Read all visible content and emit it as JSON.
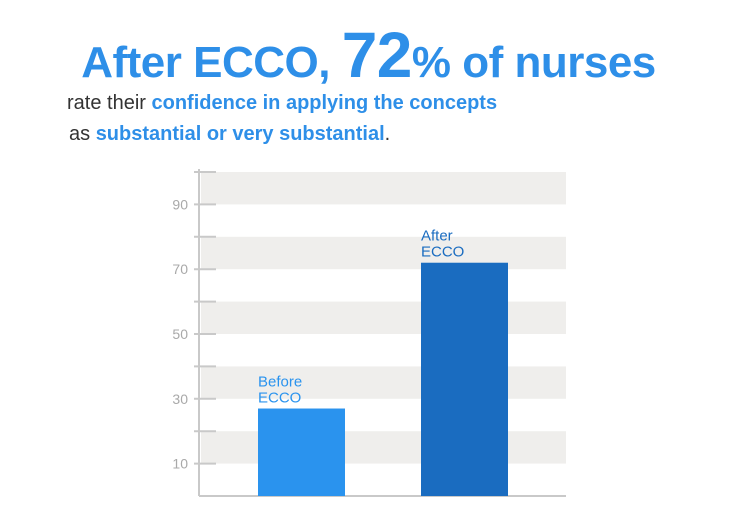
{
  "headline": {
    "part1": "After ECCO, ",
    "number": "72",
    "part2": "% of nurses"
  },
  "subtitle": {
    "line1_plain": "rate their ",
    "line1_highlight": "confidence in applying the concepts",
    "line2_plain": "as ",
    "line2_highlight": "substantial or very substantial",
    "line2_end": "."
  },
  "colors": {
    "before_bar": "#2a93ee",
    "after_bar": "#1a6cc0",
    "band": "#efeeec",
    "axis": "#c9c9c9",
    "tick_label": "#a9a9a9",
    "accent": "#2e8fe8"
  },
  "chart_data": {
    "type": "bar",
    "categories": [
      [
        "Before",
        "ECCO"
      ],
      [
        "After",
        "ECCO"
      ]
    ],
    "values": [
      27,
      72
    ],
    "ylim": [
      0,
      100
    ],
    "yticks": [
      10,
      30,
      50,
      70,
      90
    ],
    "title": "",
    "xlabel": "",
    "ylabel": ""
  }
}
